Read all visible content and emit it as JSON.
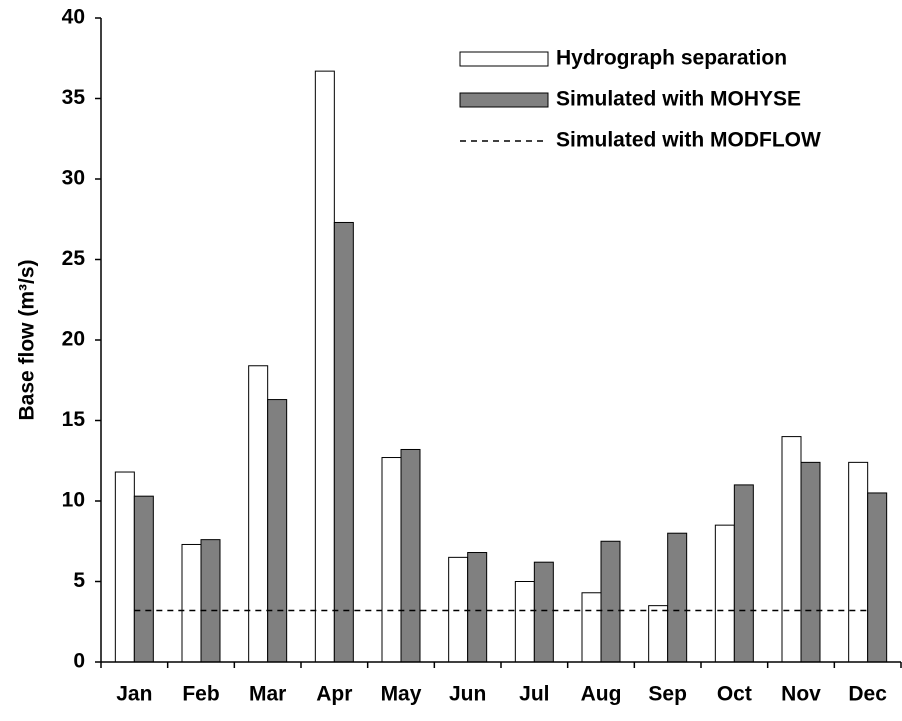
{
  "chart_data": {
    "type": "bar",
    "ylabel": "Base flow (m³/s)",
    "categories": [
      "Jan",
      "Feb",
      "Mar",
      "Apr",
      "May",
      "Jun",
      "Jul",
      "Aug",
      "Sep",
      "Oct",
      "Nov",
      "Dec"
    ],
    "series": [
      {
        "name": "Hydrograph separation",
        "color": "#ffffff",
        "values": [
          11.8,
          7.3,
          18.4,
          36.7,
          12.7,
          6.5,
          5.0,
          4.3,
          3.5,
          8.5,
          14.0,
          12.4
        ]
      },
      {
        "name": "Simulated with MOHYSE",
        "color": "#808080",
        "values": [
          10.3,
          7.6,
          16.3,
          27.3,
          13.2,
          6.8,
          6.2,
          7.5,
          8.0,
          11.0,
          12.4,
          10.5
        ]
      },
      {
        "name": "Simulated with MODFLOW",
        "color": "#000000",
        "type": "line",
        "dash": true,
        "values": [
          3.2,
          3.2,
          3.2,
          3.2,
          3.2,
          3.2,
          3.2,
          3.2,
          3.2,
          3.2,
          3.2,
          3.2
        ]
      }
    ],
    "ylim": [
      0,
      40
    ],
    "yticks": [
      0,
      5,
      10,
      15,
      20,
      25,
      30,
      35,
      40
    ],
    "legend": "upper right"
  }
}
